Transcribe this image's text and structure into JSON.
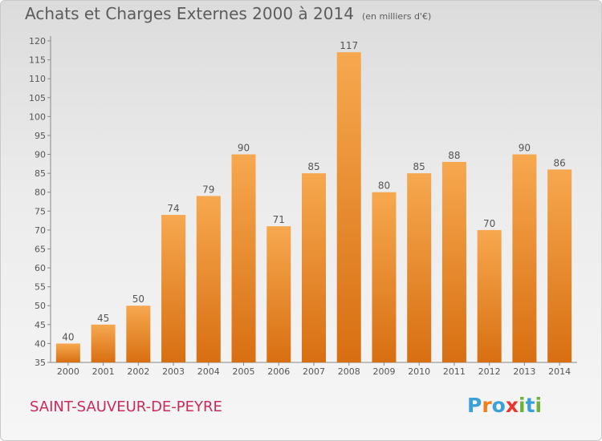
{
  "title": "Achats et Charges Externes 2000 à 2014",
  "unit_note": "(en milliers d'€)",
  "commune": "SAINT-SAUVEUR-DE-PEYRE",
  "logo": {
    "letters": [
      "P",
      "r",
      "o",
      "x",
      "i",
      "t",
      "i"
    ],
    "colors": [
      "#3aa0d8",
      "#f07f1a",
      "#3aa0d8",
      "#e8372f",
      "#6fb13a",
      "#3aa0d8",
      "#6fb13a"
    ]
  },
  "colors": {
    "bar_top": "#f7a84f",
    "bar_bottom": "#d86f12",
    "text": "#555555",
    "commune": "#cc2a5c"
  },
  "chart_data": {
    "type": "bar",
    "title": "Achats et Charges Externes 2000 à 2014",
    "xlabel": "",
    "ylabel": "",
    "categories": [
      "2000",
      "2001",
      "2002",
      "2003",
      "2004",
      "2005",
      "2006",
      "2007",
      "2008",
      "2009",
      "2010",
      "2011",
      "2012",
      "2013",
      "2014"
    ],
    "values": [
      40,
      45,
      50,
      74,
      79,
      90,
      71,
      85,
      117,
      80,
      85,
      88,
      70,
      90,
      86
    ],
    "ylim": [
      35,
      120
    ],
    "yticks": [
      35,
      40,
      45,
      50,
      55,
      60,
      65,
      70,
      75,
      80,
      85,
      90,
      95,
      100,
      105,
      110,
      115,
      120
    ],
    "grid": false,
    "legend": "none"
  }
}
